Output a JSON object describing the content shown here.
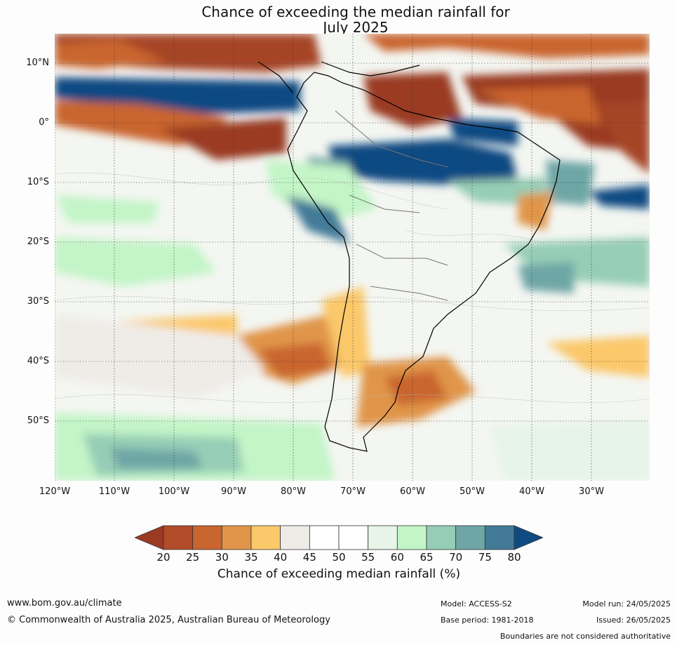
{
  "title_line1": "Chance of exceeding the median rainfall for",
  "title_line2": "July 2025",
  "lat_labels": [
    "10°N",
    "0°",
    "10°S",
    "20°S",
    "30°S",
    "40°S",
    "50°S"
  ],
  "lon_labels": [
    "120°W",
    "110°W",
    "100°W",
    "90°W",
    "80°W",
    "70°W",
    "60°W",
    "50°W",
    "40°W",
    "30°W"
  ],
  "colorbar": {
    "title": "Chance of exceeding median rainfall (%)",
    "labels": [
      "20",
      "25",
      "30",
      "35",
      "40",
      "45",
      "50",
      "55",
      "60",
      "65",
      "70",
      "75",
      "80"
    ],
    "colors": [
      "#9a3a23",
      "#b24b2a",
      "#c9652f",
      "#e0954a",
      "#fbc86a",
      "#efece8",
      "#ffffff",
      "#ffffff",
      "#e7f4e8",
      "#c3f5c7",
      "#96cdb6",
      "#6ea6a6",
      "#427a98",
      "#0f4a82"
    ]
  },
  "footer": {
    "website": "www.bom.gov.au/climate",
    "copyright": "© Commonwealth of Australia 2025, Australian Bureau of Meteorology",
    "model": "Model: ACCESS-S2",
    "model_run": "Model run: 24/05/2025",
    "base_period": "Base period: 1981-2018",
    "issued": "Issued: 26/05/2025",
    "disclaimer": "Boundaries are not considered authoritative"
  }
}
